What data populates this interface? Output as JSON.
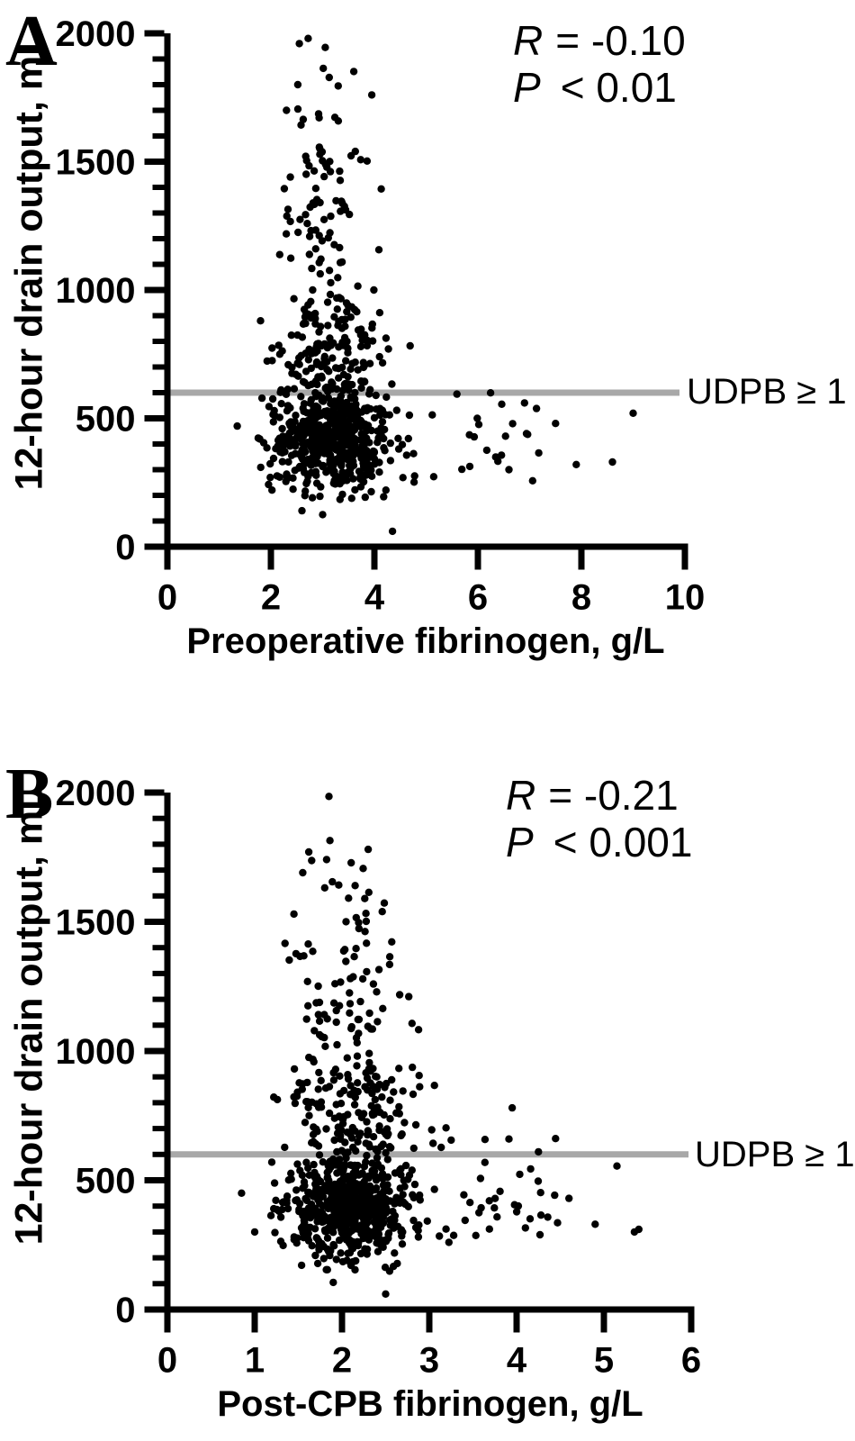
{
  "figure_background": "#ffffff",
  "chart_data": [
    {
      "panel": "A",
      "type": "scatter",
      "xlabel": "Preoperative fibrinogen, g/L",
      "ylabel": "12-hour drain output, mL",
      "xlim": [
        0,
        10
      ],
      "ylim": [
        0,
        2000
      ],
      "x_ticks": [
        0,
        2,
        4,
        6,
        8,
        10
      ],
      "y_ticks": [
        0,
        500,
        1000,
        1500,
        2000
      ],
      "y_minor_step": 100,
      "grid": false,
      "annotation": {
        "r_label": "R",
        "r_text": "= -0.10",
        "p_label": "P",
        "p_text": "< 0.01"
      },
      "threshold_line": {
        "y": 600,
        "label": "UDPB ≥ 1",
        "color": "#a8a8a8"
      },
      "point_color": "#000000",
      "distribution": {
        "seed": 20201,
        "clusters": [
          {
            "name": "dense-core",
            "n": 540,
            "x": {
              "dist": "normal",
              "mean": 3.15,
              "sd": 0.62,
              "min": 1.75,
              "max": 5.3
            },
            "y": {
              "dist": "normal",
              "mean": 420,
              "sd": 110,
              "min": 150,
              "max": 640
            }
          },
          {
            "name": "mid-band",
            "n": 150,
            "x": {
              "dist": "normal",
              "mean": 3.1,
              "sd": 0.58,
              "min": 1.9,
              "max": 5.0
            },
            "y": {
              "dist": "normal",
              "mean": 760,
              "sd": 130,
              "min": 605,
              "max": 1050
            }
          },
          {
            "name": "upper-funnel",
            "n": 80,
            "x": {
              "dist": "normal",
              "mean": 3.0,
              "sd": 0.45,
              "min": 2.1,
              "max": 4.5
            },
            "y": {
              "dist": "normal",
              "mean": 1280,
              "sd": 250,
              "min": 1020,
              "max": 1990
            }
          },
          {
            "name": "right-tail",
            "n": 22,
            "x": {
              "dist": "uniform",
              "min": 4.8,
              "max": 7.2
            },
            "y": {
              "dist": "normal",
              "mean": 420,
              "sd": 90,
              "min": 250,
              "max": 620
            }
          }
        ],
        "extra_points": [
          [
            4.35,
            60
          ],
          [
            3.0,
            125
          ],
          [
            2.6,
            140
          ],
          [
            1.35,
            470
          ],
          [
            1.8,
            880
          ],
          [
            2.72,
            1980
          ],
          [
            3.05,
            1945
          ],
          [
            2.52,
            1800
          ],
          [
            3.3,
            1795
          ],
          [
            3.95,
            1760
          ],
          [
            2.3,
            1700
          ],
          [
            2.55,
            1960
          ],
          [
            9.0,
            520
          ],
          [
            8.6,
            330
          ],
          [
            7.9,
            320
          ],
          [
            6.9,
            560
          ],
          [
            7.5,
            480
          ],
          [
            6.6,
            300
          ]
        ]
      }
    },
    {
      "panel": "B",
      "type": "scatter",
      "xlabel": "Post-CPB fibrinogen, g/L",
      "ylabel": "12-hour drain output, mL",
      "xlim": [
        0,
        6
      ],
      "ylim": [
        0,
        2000
      ],
      "x_ticks": [
        0,
        1,
        2,
        3,
        4,
        5,
        6
      ],
      "y_ticks": [
        0,
        500,
        1000,
        1500,
        2000
      ],
      "y_minor_step": 100,
      "grid": false,
      "annotation": {
        "r_label": "R",
        "r_text": "= -0.21",
        "p_label": "P",
        "p_text": "< 0.001"
      },
      "threshold_line": {
        "y": 600,
        "label": "UDPB ≥ 1",
        "color": "#a8a8a8"
      },
      "point_color": "#000000",
      "distribution": {
        "seed": 31415,
        "clusters": [
          {
            "name": "dense-core",
            "n": 600,
            "x": {
              "dist": "normal",
              "mean": 2.05,
              "sd": 0.38,
              "min": 1.15,
              "max": 3.6
            },
            "y": {
              "dist": "normal",
              "mean": 405,
              "sd": 105,
              "min": 140,
              "max": 640
            }
          },
          {
            "name": "mid-band",
            "n": 160,
            "x": {
              "dist": "normal",
              "mean": 2.1,
              "sd": 0.4,
              "min": 1.2,
              "max": 3.5
            },
            "y": {
              "dist": "normal",
              "mean": 760,
              "sd": 130,
              "min": 605,
              "max": 1050
            }
          },
          {
            "name": "upper-funnel",
            "n": 85,
            "x": {
              "dist": "normal",
              "mean": 2.0,
              "sd": 0.33,
              "min": 1.3,
              "max": 3.1
            },
            "y": {
              "dist": "normal",
              "mean": 1270,
              "sd": 255,
              "min": 1020,
              "max": 1990
            }
          },
          {
            "name": "right-tail",
            "n": 34,
            "x": {
              "dist": "uniform",
              "min": 3.2,
              "max": 4.6
            },
            "y": {
              "dist": "normal",
              "mean": 420,
              "sd": 115,
              "min": 200,
              "max": 700
            }
          }
        ],
        "extra_points": [
          [
            2.5,
            60
          ],
          [
            1.9,
            105
          ],
          [
            0.85,
            450
          ],
          [
            1.0,
            300
          ],
          [
            1.85,
            1985
          ],
          [
            2.3,
            1780
          ],
          [
            1.62,
            1770
          ],
          [
            1.55,
            1690
          ],
          [
            2.15,
            1640
          ],
          [
            1.45,
            1530
          ],
          [
            5.15,
            555
          ],
          [
            5.35,
            300
          ],
          [
            5.4,
            310
          ],
          [
            4.9,
            330
          ],
          [
            4.25,
            610
          ],
          [
            3.95,
            780
          ],
          [
            4.6,
            430
          ]
        ]
      }
    }
  ]
}
